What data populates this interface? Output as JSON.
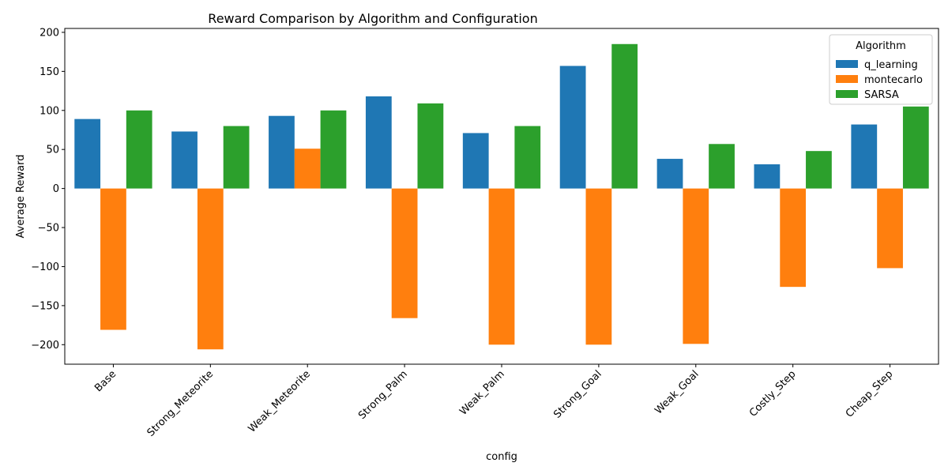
{
  "chart_data": {
    "type": "bar",
    "title": "Reward Comparison by Algorithm and Configuration",
    "xlabel": "config",
    "ylabel": "Average Reward",
    "categories": [
      "Base",
      "Strong_Meteorite",
      "Weak_Meteorite",
      "Strong_Palm",
      "Weak_Palm",
      "Strong_Goal",
      "Weak_Goal",
      "Costly_Step",
      "Cheap_Step"
    ],
    "series": [
      {
        "name": "q_learning",
        "color": "#1f77b4",
        "values": [
          89,
          73,
          93,
          118,
          71,
          157,
          38,
          31,
          82
        ]
      },
      {
        "name": "montecarlo",
        "color": "#ff7f0e",
        "values": [
          -181,
          -206,
          51,
          -166,
          -200,
          -200,
          -199,
          -126,
          -102
        ]
      },
      {
        "name": "SARSA",
        "color": "#2ca02c",
        "values": [
          100,
          80,
          100,
          109,
          80,
          185,
          57,
          48,
          105
        ]
      }
    ],
    "ylim": [
      -225,
      205
    ],
    "yticks": [
      -200,
      -150,
      -100,
      -50,
      0,
      50,
      100,
      150,
      200
    ],
    "ytick_labels": [
      "−200",
      "−150",
      "−100",
      "−50",
      "0",
      "50",
      "100",
      "150",
      "200"
    ],
    "legend": {
      "title": "Algorithm",
      "position": "top-right"
    },
    "grid": false
  }
}
